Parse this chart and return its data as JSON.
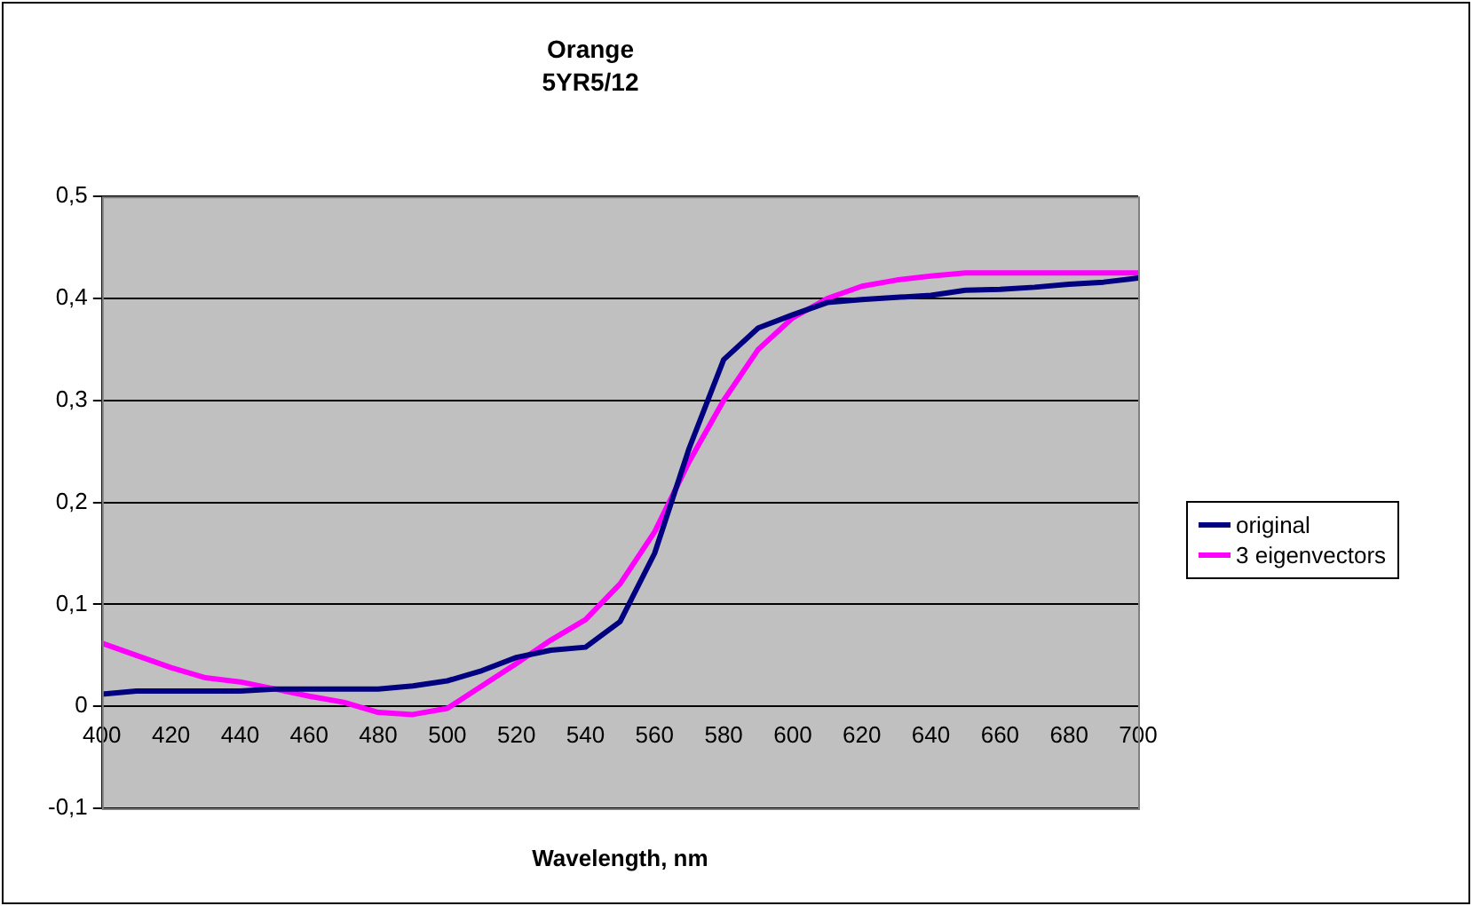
{
  "chart_data": {
    "type": "line",
    "title": "Orange",
    "subtitle": "5YR5/12",
    "xlabel": "Wavelength, nm",
    "x": [
      400,
      410,
      420,
      430,
      440,
      450,
      460,
      470,
      480,
      490,
      500,
      510,
      520,
      530,
      540,
      550,
      560,
      570,
      580,
      590,
      600,
      610,
      620,
      630,
      640,
      650,
      660,
      670,
      680,
      690,
      700
    ],
    "series": [
      {
        "name": "original",
        "color": "#000080",
        "values": [
          0.012,
          0.015,
          0.015,
          0.015,
          0.015,
          0.017,
          0.017,
          0.017,
          0.017,
          0.02,
          0.025,
          0.035,
          0.048,
          0.055,
          0.058,
          0.083,
          0.15,
          0.253,
          0.34,
          0.371,
          0.384,
          0.396,
          0.399,
          0.401,
          0.403,
          0.408,
          0.409,
          0.411,
          0.414,
          0.416,
          0.42
        ]
      },
      {
        "name": "3 eigenvectors",
        "color": "#ff00ff",
        "values": [
          0.062,
          0.05,
          0.038,
          0.028,
          0.024,
          0.017,
          0.01,
          0.004,
          -0.006,
          -0.008,
          -0.002,
          0.02,
          0.042,
          0.065,
          0.085,
          0.12,
          0.171,
          0.24,
          0.3,
          0.35,
          0.381,
          0.4,
          0.412,
          0.418,
          0.422,
          0.425,
          0.425,
          0.425,
          0.425,
          0.425,
          0.425
        ]
      }
    ],
    "xlim": [
      400,
      700
    ],
    "xticks": [
      400,
      420,
      440,
      460,
      480,
      500,
      520,
      540,
      560,
      580,
      600,
      620,
      640,
      660,
      680,
      700
    ],
    "ylim": [
      -0.1,
      0.5
    ],
    "yticks": [
      {
        "value": -0.1,
        "label": "-0,1"
      },
      {
        "value": 0,
        "label": "0"
      },
      {
        "value": 0.1,
        "label": "0,1"
      },
      {
        "value": 0.2,
        "label": "0,2"
      },
      {
        "value": 0.3,
        "label": "0,3"
      },
      {
        "value": 0.4,
        "label": "0,4"
      },
      {
        "value": 0.5,
        "label": "0,5"
      }
    ],
    "grid": "y",
    "legend": "right",
    "marker": "none",
    "line_style": "solid"
  }
}
